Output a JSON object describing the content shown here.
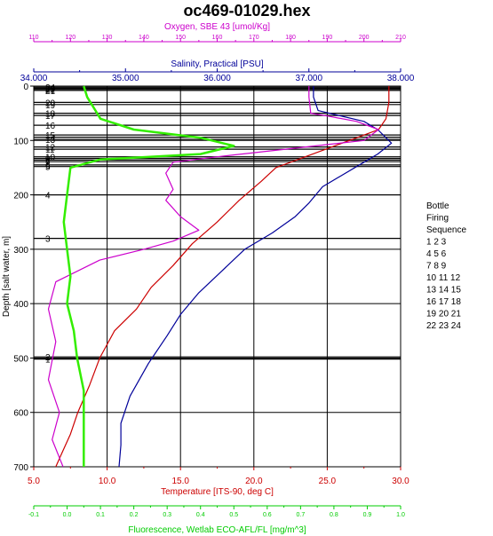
{
  "chart_data": {
    "type": "line",
    "title": "oc469-01029.hex",
    "y_axis": {
      "label": "Depth [salt water, m]",
      "range": [
        0,
        700
      ],
      "ticks": [
        0,
        100,
        200,
        300,
        400,
        500,
        600,
        700
      ]
    },
    "x_axes": [
      {
        "id": "oxygen",
        "label": "Oxygen, SBE 43 [umol/Kg]",
        "position": "top",
        "range": [
          110,
          210
        ],
        "tick_labels": [
          "110",
          "120",
          "130",
          "140",
          "150",
          "160",
          "170",
          "180",
          "190",
          "200",
          "210"
        ],
        "color": "#cc00cc"
      },
      {
        "id": "salinity",
        "label": "Salinity, Practical [PSU]",
        "position": "top",
        "range": [
          34,
          38
        ],
        "tick_labels": [
          "34.000",
          "35.000",
          "36.000",
          "37.000",
          "38.000"
        ],
        "color": "#000099"
      },
      {
        "id": "temperature",
        "label": "Temperature [ITS-90, deg C]",
        "position": "bottom",
        "range": [
          5,
          30
        ],
        "tick_labels": [
          "5.0",
          "10.0",
          "15.0",
          "20.0",
          "25.0",
          "30.0"
        ],
        "color": "#cc0000"
      },
      {
        "id": "fluorescence",
        "label": "Fluorescence, Wetlab ECO-AFL/FL [mg/m^3]",
        "position": "bottom",
        "range": [
          -0.1,
          1.0
        ],
        "tick_labels": [
          "-0.1",
          "0.0",
          "0.1",
          "0.2",
          "0.3",
          "0.4",
          "0.5",
          "0.6",
          "0.7",
          "0.8",
          "0.9",
          "1.0"
        ],
        "color": "#00cc00"
      }
    ],
    "series": [
      {
        "axis": "temperature",
        "color": "#cc0000",
        "x": [
          29.2,
          29.2,
          29.0,
          28.5,
          27.5,
          25.5,
          23.5,
          21.5,
          20.5,
          19.0,
          17.5,
          15.8,
          14.5,
          13.0,
          12.0,
          10.5,
          9.5,
          8.8,
          8.0,
          7.5,
          7.0,
          6.5
        ],
        "y": [
          0,
          30,
          60,
          80,
          90,
          110,
          130,
          150,
          175,
          210,
          250,
          290,
          330,
          370,
          410,
          450,
          500,
          550,
          600,
          640,
          670,
          700
        ]
      },
      {
        "axis": "salinity",
        "color": "#000099",
        "x": [
          37.05,
          37.05,
          37.1,
          37.6,
          37.75,
          37.9,
          37.75,
          37.6,
          37.35,
          37.15,
          37.0,
          36.85,
          36.6,
          36.3,
          36.05,
          35.8,
          35.6,
          35.45,
          35.25,
          35.05,
          34.95,
          34.95,
          34.93
        ],
        "y": [
          0,
          20,
          45,
          65,
          80,
          105,
          125,
          140,
          165,
          185,
          215,
          240,
          270,
          300,
          340,
          380,
          420,
          460,
          510,
          570,
          620,
          660,
          700
        ]
      },
      {
        "axis": "oxygen",
        "color": "#cc00cc",
        "x": [
          185,
          185,
          185.5,
          190,
          198,
          204,
          200,
          180,
          160,
          148,
          146,
          148,
          146,
          150,
          155,
          148,
          140,
          128,
          116,
          114,
          116,
          114,
          117,
          115,
          118
        ],
        "y": [
          0,
          20,
          50,
          55,
          65,
          80,
          100,
          115,
          130,
          140,
          160,
          190,
          210,
          240,
          265,
          285,
          300,
          320,
          360,
          410,
          470,
          540,
          600,
          650,
          700
        ]
      },
      {
        "axis": "fluorescence",
        "color": "#33ee00",
        "x": [
          0.05,
          0.06,
          0.08,
          0.1,
          0.2,
          0.4,
          0.5,
          0.4,
          0.1,
          0.01,
          0.0,
          -0.01,
          0.0,
          0.01,
          0.0,
          0.02,
          0.03,
          0.05,
          0.05,
          0.05
        ],
        "y": [
          0,
          20,
          40,
          60,
          80,
          95,
          110,
          125,
          135,
          150,
          200,
          250,
          300,
          350,
          400,
          450,
          500,
          560,
          640,
          700
        ]
      }
    ],
    "bottles": [
      {
        "label": "24",
        "depth": 2
      },
      {
        "label": "23",
        "depth": 4
      },
      {
        "label": "22",
        "depth": 6
      },
      {
        "label": "21",
        "depth": 8
      },
      {
        "label": "20",
        "depth": 30
      },
      {
        "label": "19",
        "depth": 34
      },
      {
        "label": "18",
        "depth": 50
      },
      {
        "label": "17",
        "depth": 54
      },
      {
        "label": "16",
        "depth": 72
      },
      {
        "label": "15",
        "depth": 90
      },
      {
        "label": "14",
        "depth": 94
      },
      {
        "label": "13",
        "depth": 98
      },
      {
        "label": "12",
        "depth": 112
      },
      {
        "label": "11",
        "depth": 116
      },
      {
        "label": "10",
        "depth": 130
      },
      {
        "label": "9",
        "depth": 133
      },
      {
        "label": "8",
        "depth": 136
      },
      {
        "label": "7",
        "depth": 139
      },
      {
        "label": "6",
        "depth": 145
      },
      {
        "label": "5",
        "depth": 148
      },
      {
        "label": "4",
        "depth": 200
      },
      {
        "label": "3",
        "depth": 280
      },
      {
        "label": "2",
        "depth": 498
      },
      {
        "label": "1",
        "depth": 502
      }
    ],
    "legend": {
      "title_lines": [
        "Bottle",
        "Firing",
        "Sequence"
      ],
      "rows": [
        "1  2  3",
        "4  5  6",
        "7  8  9",
        "10 11 12",
        "13 14 15",
        "16 17 18",
        "19 20 21",
        "22 23 24"
      ]
    }
  }
}
